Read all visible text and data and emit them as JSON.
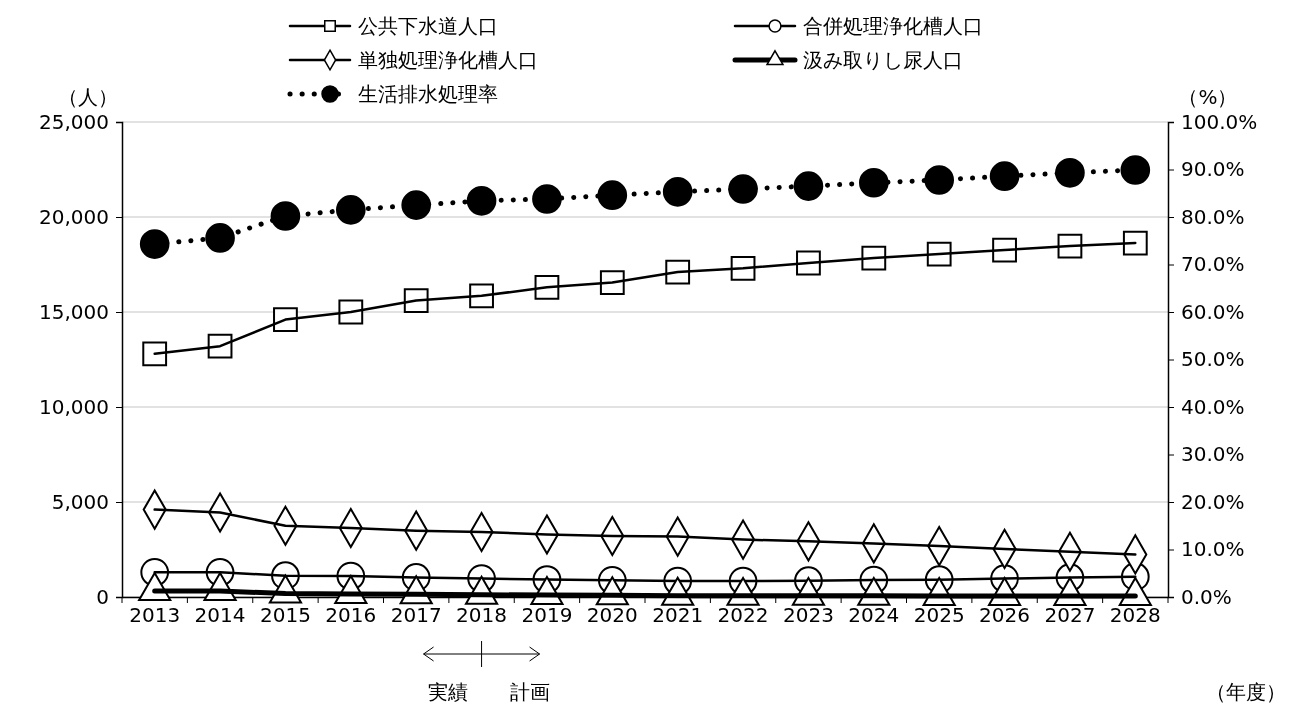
{
  "chart_data": {
    "type": "line",
    "categories": [
      "2013",
      "2014",
      "2015",
      "2016",
      "2017",
      "2018",
      "2019",
      "2020",
      "2021",
      "2022",
      "2023",
      "2024",
      "2025",
      "2026",
      "2027",
      "2028"
    ],
    "series": [
      {
        "name": "公共下水道人口",
        "color": "#000000",
        "marker": "square",
        "line_style": "solid",
        "values": [
          12800,
          13200,
          14600,
          15000,
          15600,
          15850,
          16300,
          16550,
          17100,
          17300,
          17580,
          17840,
          18050,
          18260,
          18470,
          18630
        ]
      },
      {
        "name": "合併処理浄化槽人口",
        "color": "#000000",
        "marker": "circle",
        "line_style": "solid",
        "values": [
          1300,
          1300,
          1120,
          1100,
          1030,
          970,
          920,
          880,
          840,
          840,
          860,
          890,
          910,
          970,
          1020,
          1070
        ]
      },
      {
        "name": "単独処理浄化槽人口",
        "color": "#000000",
        "marker": "diamond",
        "line_style": "solid",
        "values": [
          4600,
          4450,
          3750,
          3630,
          3490,
          3420,
          3290,
          3210,
          3180,
          3020,
          2930,
          2820,
          2680,
          2530,
          2380,
          2240
        ]
      },
      {
        "name": "汲み取りし尿人口",
        "color": "#000000",
        "marker": "triangle",
        "line_style": "solid",
        "values": [
          320,
          320,
          180,
          160,
          140,
          120,
          100,
          90,
          70,
          60,
          60,
          60,
          50,
          50,
          50,
          50
        ]
      },
      {
        "name": "生活排水処理率",
        "color": "#000000",
        "marker": "circle",
        "line_style": "dotted",
        "axis": "y2",
        "values": [
          74.3,
          75.6,
          80.2,
          81.5,
          82.5,
          83.4,
          83.8,
          84.6,
          85.3,
          85.9,
          86.5,
          87.2,
          87.8,
          88.6,
          89.3,
          89.9
        ]
      }
    ],
    "ylabel": "（人）",
    "y2label": "（%）",
    "ylim": [
      0,
      25000
    ],
    "yticks": [
      {
        "value": 0,
        "label": "0"
      },
      {
        "value": 5000,
        "label": "5,000"
      },
      {
        "value": 10000,
        "label": "10,000"
      },
      {
        "value": 15000,
        "label": "15,000"
      },
      {
        "value": 20000,
        "label": "20,000"
      },
      {
        "value": 25000,
        "label": "25,000"
      }
    ],
    "y2lim": [
      0,
      100
    ],
    "y2ticks": [
      {
        "value": 0,
        "label": "0.0%"
      },
      {
        "value": 10,
        "label": "10.0%"
      },
      {
        "value": 20,
        "label": "20.0%"
      },
      {
        "value": 30,
        "label": "30.0%"
      },
      {
        "value": 40,
        "label": "40.0%"
      },
      {
        "value": 50,
        "label": "50.0%"
      },
      {
        "value": 60,
        "label": "60.0%"
      },
      {
        "value": 70,
        "label": "70.0%"
      },
      {
        "value": 80,
        "label": "80.0%"
      },
      {
        "value": 90,
        "label": "90.0%"
      },
      {
        "value": 100,
        "label": "100.0%"
      }
    ],
    "grid": "y",
    "legend": "top",
    "annotations": [
      "実績",
      "計画",
      "（年度）"
    ]
  }
}
